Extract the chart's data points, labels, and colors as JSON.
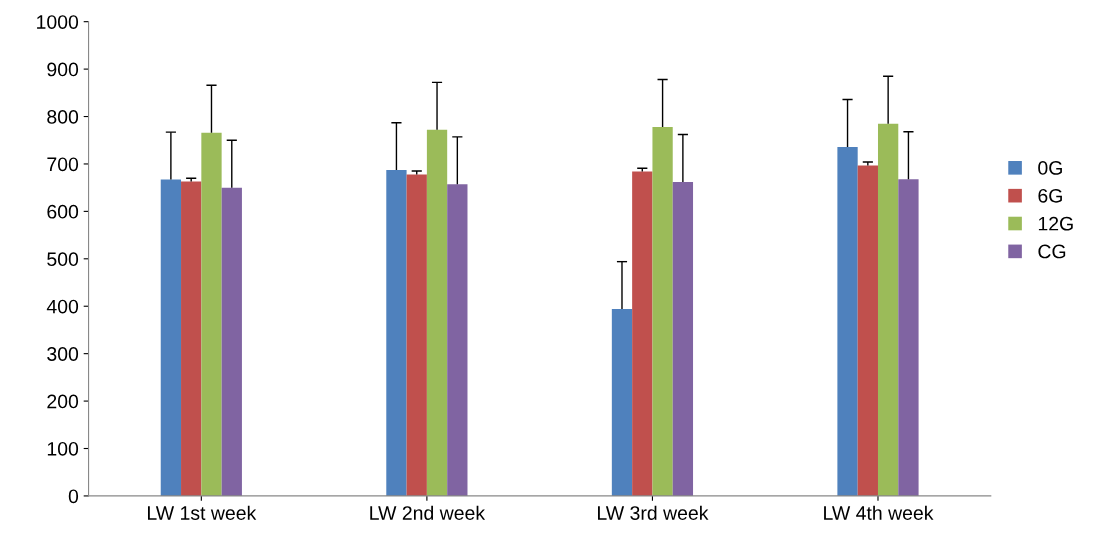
{
  "chart_data": {
    "type": "bar",
    "categories": [
      "LW 1st week",
      "LW 2nd week",
      "LW 3rd week",
      "LW 4th week"
    ],
    "series": [
      {
        "name": "0G",
        "color": "#4f81bd",
        "values": [
          667,
          687,
          394,
          736
        ],
        "errors": [
          [
            667,
            767
          ],
          [
            687,
            787
          ],
          [
            394,
            494
          ],
          [
            736,
            836
          ]
        ]
      },
      {
        "name": "6G",
        "color": "#c0504d",
        "values": [
          663,
          678,
          684,
          697
        ],
        "errors": [
          [
            663,
            670
          ],
          [
            678,
            685
          ],
          [
            684,
            691
          ],
          [
            697,
            704
          ]
        ]
      },
      {
        "name": "12G",
        "color": "#9bbb59",
        "values": [
          766,
          772,
          778,
          785
        ],
        "errors": [
          [
            766,
            866
          ],
          [
            772,
            872
          ],
          [
            778,
            878
          ],
          [
            785,
            885
          ]
        ]
      },
      {
        "name": "CG",
        "color": "#8064a2",
        "values": [
          650,
          657,
          662,
          668
        ],
        "errors": [
          [
            650,
            750
          ],
          [
            657,
            757
          ],
          [
            662,
            762
          ],
          [
            668,
            768
          ]
        ]
      }
    ],
    "ylim": [
      0,
      1000
    ],
    "yticks": [
      0,
      100,
      200,
      300,
      400,
      500,
      600,
      700,
      800,
      900,
      1000
    ],
    "grid": false,
    "legend": "right"
  }
}
